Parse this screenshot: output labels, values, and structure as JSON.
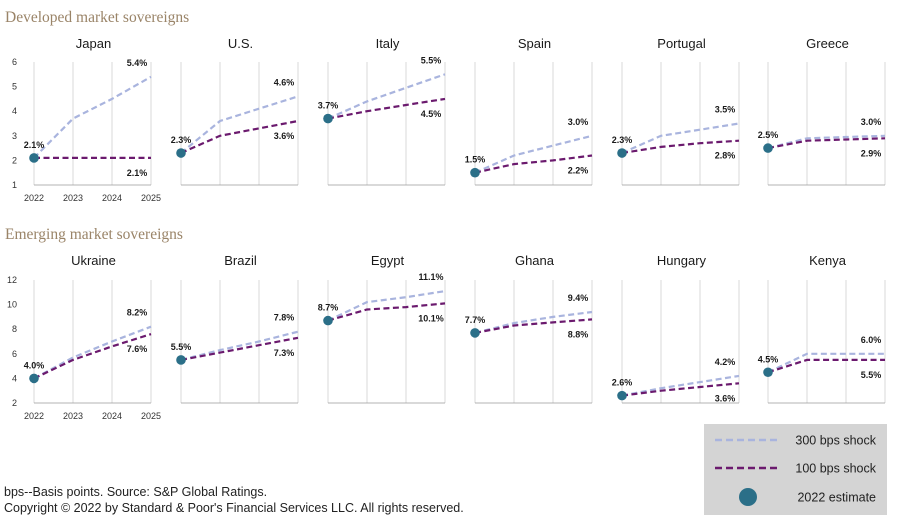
{
  "chart_data": {
    "type": "line",
    "x": [
      "2022",
      "2023",
      "2024",
      "2025"
    ],
    "sections": [
      {
        "title": "Developed market sovereigns",
        "ylim": [
          1,
          6
        ],
        "yticks": [
          "1",
          "2",
          "3",
          "4",
          "5",
          "6"
        ],
        "panels": [
          {
            "name": "Japan",
            "shock300": [
              2.1,
              3.7,
              4.5,
              5.4
            ],
            "shock100": [
              2.1,
              2.1,
              2.1,
              2.1
            ],
            "labels": {
              "start": "2.1%",
              "end300": "5.4%",
              "end100": "2.1%"
            }
          },
          {
            "name": "U.S.",
            "shock300": [
              2.3,
              3.6,
              4.1,
              4.6
            ],
            "shock100": [
              2.3,
              3.0,
              3.3,
              3.6
            ],
            "labels": {
              "start": "2.3%",
              "end300": "4.6%",
              "end100": "3.6%"
            }
          },
          {
            "name": "Italy",
            "shock300": [
              3.7,
              4.4,
              4.95,
              5.5
            ],
            "shock100": [
              3.7,
              4.0,
              4.25,
              4.5
            ],
            "labels": {
              "start": "3.7%",
              "end300": "5.5%",
              "end100": "4.5%"
            }
          },
          {
            "name": "Spain",
            "shock300": [
              1.5,
              2.2,
              2.6,
              3.0
            ],
            "shock100": [
              1.5,
              1.85,
              2.0,
              2.2
            ],
            "labels": {
              "start": "1.5%",
              "end300": "3.0%",
              "end100": "2.2%"
            }
          },
          {
            "name": "Portugal",
            "shock300": [
              2.3,
              3.0,
              3.25,
              3.5
            ],
            "shock100": [
              2.3,
              2.55,
              2.7,
              2.8
            ],
            "labels": {
              "start": "2.3%",
              "end300": "3.5%",
              "end100": "2.8%"
            }
          },
          {
            "name": "Greece",
            "shock300": [
              2.5,
              2.9,
              2.95,
              3.0
            ],
            "shock100": [
              2.5,
              2.8,
              2.85,
              2.9
            ],
            "labels": {
              "start": "2.5%",
              "end300": "3.0%",
              "end100": "2.9%"
            }
          }
        ]
      },
      {
        "title": "Emerging market sovereigns",
        "ylim": [
          2,
          12
        ],
        "yticks": [
          "2",
          "4",
          "6",
          "8",
          "10",
          "12"
        ],
        "panels": [
          {
            "name": "Ukraine",
            "shock300": [
              4.0,
              5.7,
              7.0,
              8.2
            ],
            "shock100": [
              4.0,
              5.5,
              6.6,
              7.6
            ],
            "labels": {
              "start": "4.0%",
              "end300": "8.2%",
              "end100": "7.6%"
            }
          },
          {
            "name": "Brazil",
            "shock300": [
              5.5,
              6.3,
              7.0,
              7.8
            ],
            "shock100": [
              5.5,
              6.1,
              6.7,
              7.3
            ],
            "labels": {
              "start": "5.5%",
              "end300": "7.8%",
              "end100": "7.3%"
            }
          },
          {
            "name": "Egypt",
            "shock300": [
              8.7,
              10.2,
              10.6,
              11.1
            ],
            "shock100": [
              8.7,
              9.6,
              9.8,
              10.1
            ],
            "labels": {
              "start": "8.7%",
              "end300": "11.1%",
              "end100": "10.1%"
            }
          },
          {
            "name": "Ghana",
            "shock300": [
              7.7,
              8.5,
              9.0,
              9.4
            ],
            "shock100": [
              7.7,
              8.3,
              8.55,
              8.8
            ],
            "labels": {
              "start": "7.7%",
              "end300": "9.4%",
              "end100": "8.8%"
            }
          },
          {
            "name": "Hungary",
            "shock300": [
              2.6,
              3.2,
              3.7,
              4.2
            ],
            "shock100": [
              2.6,
              3.0,
              3.3,
              3.6
            ],
            "labels": {
              "start": "2.6%",
              "end300": "4.2%",
              "end100": "3.6%"
            }
          },
          {
            "name": "Kenya",
            "shock300": [
              4.5,
              6.0,
              6.0,
              6.0
            ],
            "shock100": [
              4.5,
              5.5,
              5.5,
              5.5
            ],
            "labels": {
              "start": "4.5%",
              "end300": "6.0%",
              "end100": "5.5%"
            }
          }
        ]
      }
    ],
    "legend": [
      {
        "key": "shock300",
        "label": "300 bps shock"
      },
      {
        "key": "shock100",
        "label": "100 bps shock"
      },
      {
        "key": "estimate",
        "label": "2022 estimate"
      }
    ],
    "colors": {
      "shock300": "#a9b4de",
      "shock100": "#6b1a6e",
      "estimate": "#2b6f88",
      "grid": "#c8c8c8",
      "legendBg": "#d4d4d4"
    }
  },
  "footnote": {
    "line1": "bps--Basis points. Source: S&P Global Ratings.",
    "line2": "Copyright © 2022 by Standard & Poor's Financial Services LLC. All rights reserved."
  }
}
